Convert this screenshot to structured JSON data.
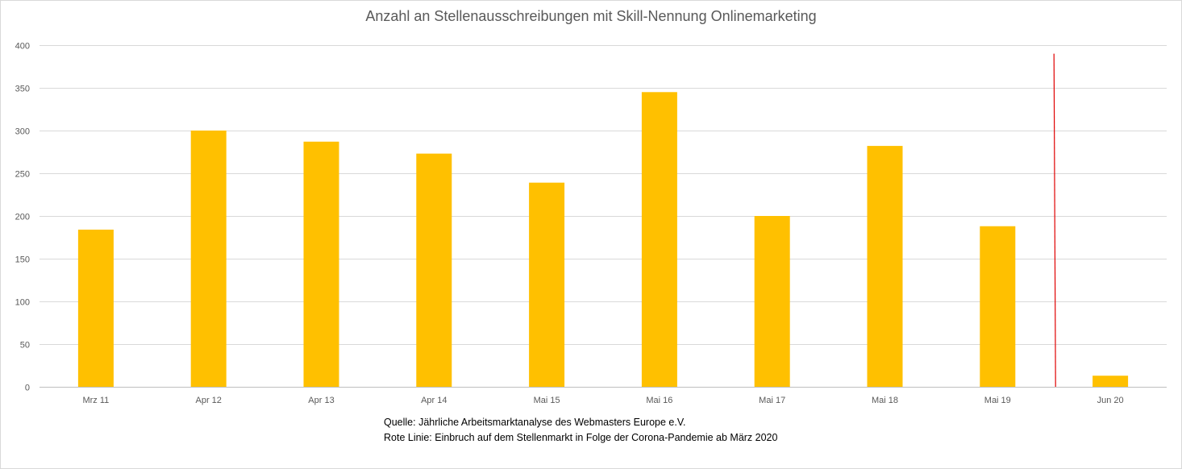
{
  "chart_data": {
    "type": "bar",
    "title": "Anzahl an Stellenausschreibungen mit Skill-Nennung Onlinemarketing",
    "xlabel": "",
    "ylabel": "",
    "ylim": [
      0,
      400
    ],
    "yticks": [
      "0",
      "50",
      "100",
      "150",
      "200",
      "250",
      "300",
      "350",
      "400"
    ],
    "categories": [
      "Mrz 11",
      "Apr 12",
      "Apr 13",
      "Apr 14",
      "Mai 15",
      "Mai 16",
      "Mai 17",
      "Mai 18",
      "Mai 19",
      "Jun 20"
    ],
    "values": [
      184,
      300,
      287,
      273,
      239,
      345,
      200,
      282,
      188,
      13
    ],
    "grid": true,
    "legend": "none",
    "bar_color": "#FFC000",
    "marker_line": {
      "between": [
        "Mai 19",
        "Jun 20"
      ],
      "value": 390,
      "color": "#E00000"
    }
  },
  "notes": {
    "source": "Quelle: Jährliche Arbeitsmarktanalyse des Webmasters Europe e.V.",
    "red_line": "Rote Linie: Einbruch auf dem Stellenmarkt in Folge der Corona-Pandemie ab März 2020"
  }
}
